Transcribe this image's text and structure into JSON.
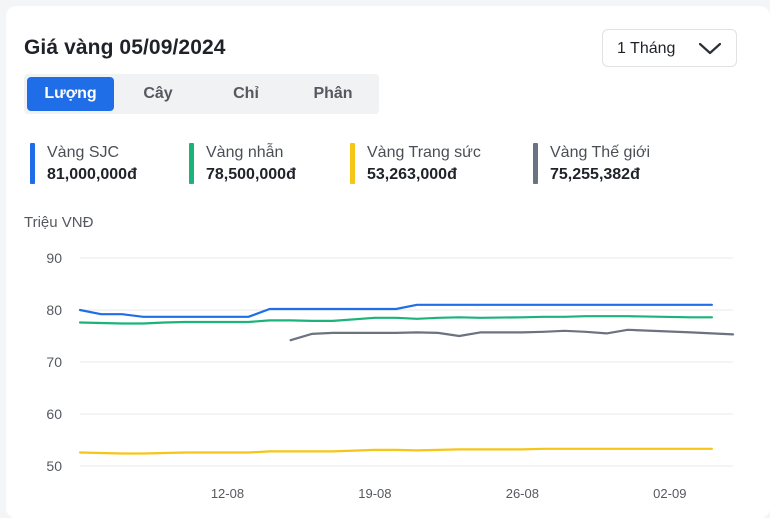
{
  "title": "Giá vàng 05/09/2024",
  "range_select": {
    "label": "1 Tháng"
  },
  "tabs": [
    {
      "label": "Lượng",
      "active": true
    },
    {
      "label": "Cây",
      "active": false
    },
    {
      "label": "Chỉ",
      "active": false
    },
    {
      "label": "Phân",
      "active": false
    }
  ],
  "legend": [
    {
      "name": "Vàng SJC",
      "value": "81,000,000đ",
      "color": "#1f6ee8"
    },
    {
      "name": "Vàng nhẫn",
      "value": "78,500,000đ",
      "color": "#1bb37a"
    },
    {
      "name": "Vàng Trang sức",
      "value": "53,263,000đ",
      "color": "#f5c518"
    },
    {
      "name": "Vàng Thế giới",
      "value": "75,255,382đ",
      "color": "#6b7280"
    }
  ],
  "chart_data": {
    "type": "line",
    "ylabel": "Triệu VNĐ",
    "xlabel": "",
    "ylim": [
      50,
      90
    ],
    "yticks": [
      90,
      80,
      70,
      60,
      50
    ],
    "grid": true,
    "x_tick_labels": [
      {
        "label": "12-08",
        "date": "2024-08-12"
      },
      {
        "label": "19-08",
        "date": "2024-08-19"
      },
      {
        "label": "26-08",
        "date": "2024-08-26"
      },
      {
        "label": "02-09",
        "date": "2024-09-02"
      }
    ],
    "x_range": [
      "2024-08-05",
      "2024-09-05"
    ],
    "series": [
      {
        "name": "Vàng SJC",
        "color": "#1f6ee8",
        "points": [
          [
            "2024-08-05",
            80.0
          ],
          [
            "2024-08-06",
            79.2
          ],
          [
            "2024-08-07",
            79.2
          ],
          [
            "2024-08-08",
            78.7
          ],
          [
            "2024-08-09",
            78.7
          ],
          [
            "2024-08-10",
            78.7
          ],
          [
            "2024-08-12",
            78.7
          ],
          [
            "2024-08-13",
            78.7
          ],
          [
            "2024-08-14",
            80.2
          ],
          [
            "2024-08-15",
            80.2
          ],
          [
            "2024-08-16",
            80.2
          ],
          [
            "2024-08-17",
            80.2
          ],
          [
            "2024-08-19",
            80.2
          ],
          [
            "2024-08-20",
            80.2
          ],
          [
            "2024-08-21",
            81.0
          ],
          [
            "2024-08-22",
            81.0
          ],
          [
            "2024-08-23",
            81.0
          ],
          [
            "2024-08-24",
            81.0
          ],
          [
            "2024-08-26",
            81.0
          ],
          [
            "2024-08-27",
            81.0
          ],
          [
            "2024-08-28",
            81.0
          ],
          [
            "2024-08-29",
            81.0
          ],
          [
            "2024-08-30",
            81.0
          ],
          [
            "2024-08-31",
            81.0
          ],
          [
            "2024-09-03",
            81.0
          ],
          [
            "2024-09-04",
            81.0
          ]
        ]
      },
      {
        "name": "Vàng nhẫn",
        "color": "#1bb37a",
        "points": [
          [
            "2024-08-05",
            77.6
          ],
          [
            "2024-08-06",
            77.5
          ],
          [
            "2024-08-07",
            77.4
          ],
          [
            "2024-08-08",
            77.4
          ],
          [
            "2024-08-09",
            77.6
          ],
          [
            "2024-08-10",
            77.7
          ],
          [
            "2024-08-12",
            77.7
          ],
          [
            "2024-08-13",
            77.7
          ],
          [
            "2024-08-14",
            78.0
          ],
          [
            "2024-08-15",
            78.0
          ],
          [
            "2024-08-16",
            77.9
          ],
          [
            "2024-08-17",
            77.9
          ],
          [
            "2024-08-19",
            78.5
          ],
          [
            "2024-08-20",
            78.5
          ],
          [
            "2024-08-21",
            78.3
          ],
          [
            "2024-08-22",
            78.5
          ],
          [
            "2024-08-23",
            78.6
          ],
          [
            "2024-08-24",
            78.5
          ],
          [
            "2024-08-26",
            78.6
          ],
          [
            "2024-08-27",
            78.7
          ],
          [
            "2024-08-28",
            78.7
          ],
          [
            "2024-08-29",
            78.8
          ],
          [
            "2024-08-30",
            78.8
          ],
          [
            "2024-08-31",
            78.8
          ],
          [
            "2024-09-03",
            78.6
          ],
          [
            "2024-09-04",
            78.6
          ]
        ]
      },
      {
        "name": "Vàng Trang sức",
        "color": "#f5c518",
        "points": [
          [
            "2024-08-05",
            52.6
          ],
          [
            "2024-08-06",
            52.5
          ],
          [
            "2024-08-07",
            52.4
          ],
          [
            "2024-08-08",
            52.4
          ],
          [
            "2024-08-09",
            52.5
          ],
          [
            "2024-08-10",
            52.6
          ],
          [
            "2024-08-12",
            52.6
          ],
          [
            "2024-08-13",
            52.6
          ],
          [
            "2024-08-14",
            52.8
          ],
          [
            "2024-08-15",
            52.8
          ],
          [
            "2024-08-16",
            52.8
          ],
          [
            "2024-08-17",
            52.8
          ],
          [
            "2024-08-19",
            53.1
          ],
          [
            "2024-08-20",
            53.1
          ],
          [
            "2024-08-21",
            53.0
          ],
          [
            "2024-08-22",
            53.1
          ],
          [
            "2024-08-23",
            53.2
          ],
          [
            "2024-08-24",
            53.2
          ],
          [
            "2024-08-26",
            53.2
          ],
          [
            "2024-08-27",
            53.3
          ],
          [
            "2024-08-28",
            53.3
          ],
          [
            "2024-08-29",
            53.3
          ],
          [
            "2024-08-30",
            53.3
          ],
          [
            "2024-08-31",
            53.3
          ],
          [
            "2024-09-03",
            53.3
          ],
          [
            "2024-09-04",
            53.3
          ]
        ]
      },
      {
        "name": "Vàng Thế giới",
        "color": "#6b7280",
        "points": [
          [
            "2024-08-15",
            74.2
          ],
          [
            "2024-08-16",
            75.4
          ],
          [
            "2024-08-17",
            75.6
          ],
          [
            "2024-08-19",
            75.6
          ],
          [
            "2024-08-20",
            75.6
          ],
          [
            "2024-08-21",
            75.7
          ],
          [
            "2024-08-22",
            75.6
          ],
          [
            "2024-08-23",
            75.0
          ],
          [
            "2024-08-24",
            75.7
          ],
          [
            "2024-08-26",
            75.7
          ],
          [
            "2024-08-27",
            75.8
          ],
          [
            "2024-08-28",
            76.0
          ],
          [
            "2024-08-29",
            75.8
          ],
          [
            "2024-08-30",
            75.5
          ],
          [
            "2024-08-31",
            76.2
          ],
          [
            "2024-09-03",
            75.7
          ],
          [
            "2024-09-05",
            75.3
          ]
        ]
      }
    ]
  }
}
